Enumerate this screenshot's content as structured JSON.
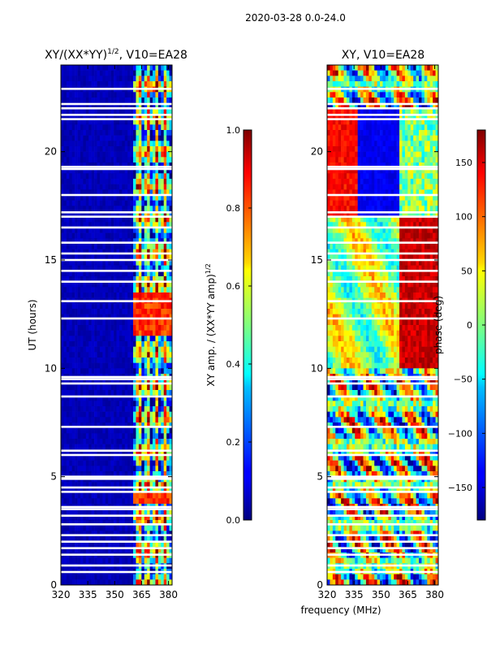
{
  "chart_data": [
    {
      "type": "heatmap",
      "title_main": "XY/(XX*YY)",
      "title_exp": "1/2",
      "title_rest": ", V10=EA28",
      "ylabel": "UT (hours)",
      "x_range": [
        320,
        382
      ],
      "y_range": [
        0,
        24
      ],
      "x_ticks": [
        "320",
        "335",
        "350",
        "365",
        "380"
      ],
      "x_tick_values": [
        320,
        335,
        350,
        365,
        380
      ],
      "y_ticks": [
        "0",
        "5",
        "10",
        "15",
        "20"
      ],
      "y_tick_values": [
        0,
        5,
        10,
        15,
        20
      ],
      "colorbar": {
        "label_main": "XY amp. / (XX*YY amp)",
        "label_exp": "1/2",
        "range": [
          0.0,
          1.0
        ],
        "ticks": [
          "0.0",
          "0.2",
          "0.4",
          "0.6",
          "0.8",
          "1.0"
        ],
        "tick_values": [
          0.0,
          0.2,
          0.4,
          0.6,
          0.8,
          1.0
        ]
      },
      "blank_rows_hours": [
        0.6,
        0.9,
        1.4,
        1.7,
        2.0,
        2.3,
        2.8,
        3.2,
        3.5,
        3.6,
        4.3,
        4.5,
        4.9,
        5.0,
        6.0,
        6.2,
        7.3,
        8.7,
        9.3,
        9.5,
        9.6,
        12.3,
        13.1,
        14.0,
        14.5,
        15.0,
        15.3,
        15.8,
        16.5,
        17.0,
        17.2,
        18.0,
        19.2,
        19.3,
        21.5,
        21.7,
        22.0,
        22.2,
        22.9
      ]
    },
    {
      "type": "heatmap",
      "title": "XY, V10=EA28",
      "xlabel": "frequency (MHz)",
      "x_range": [
        320,
        382
      ],
      "y_range": [
        0,
        24
      ],
      "x_ticks": [
        "320",
        "335",
        "350",
        "365",
        "380"
      ],
      "x_tick_values": [
        320,
        335,
        350,
        365,
        380
      ],
      "y_ticks": [
        "0",
        "5",
        "10",
        "15",
        "20"
      ],
      "y_tick_values": [
        0,
        5,
        10,
        15,
        20
      ],
      "colorbar": {
        "label": "phase (deg)",
        "range": [
          -180,
          180
        ],
        "ticks": [
          "−150",
          "−100",
          "−50",
          "0",
          "50",
          "100",
          "150"
        ],
        "tick_values": [
          -150,
          -100,
          -50,
          0,
          50,
          100,
          150
        ]
      },
      "blank_rows_hours": [
        0.6,
        0.9,
        1.4,
        1.7,
        2.0,
        2.3,
        2.8,
        3.2,
        3.5,
        3.6,
        4.3,
        4.5,
        4.9,
        5.0,
        6.0,
        6.2,
        7.3,
        8.7,
        9.3,
        9.5,
        9.6,
        12.3,
        13.1,
        14.0,
        14.5,
        15.0,
        15.3,
        15.8,
        16.5,
        17.0,
        17.2,
        18.0,
        19.2,
        19.3,
        21.5,
        21.7,
        22.0,
        22.2,
        22.9
      ]
    }
  ],
  "suptitle": "2020-03-28 0.0-24.0"
}
